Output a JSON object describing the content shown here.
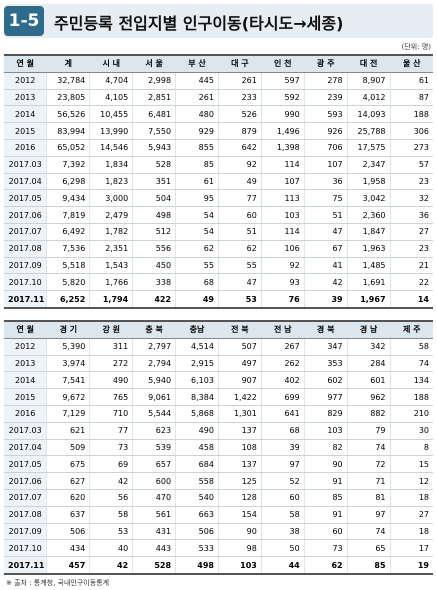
{
  "header": {
    "badge": "1-5",
    "title": "주민등록 전입지별 인구이동(타시도→세종)",
    "unit": "(단위: 명)"
  },
  "table1": {
    "columns": [
      "연 월",
      "계",
      "시 내",
      "서 울",
      "부 산",
      "대 구",
      "인 천",
      "광 주",
      "대 전",
      "울 산"
    ],
    "rows": [
      [
        "2012",
        "32,784",
        "4,704",
        "2,998",
        "445",
        "261",
        "597",
        "278",
        "8,907",
        "61"
      ],
      [
        "2013",
        "23,805",
        "4,105",
        "2,851",
        "261",
        "233",
        "592",
        "239",
        "4,012",
        "87"
      ],
      [
        "2014",
        "56,526",
        "10,455",
        "6,481",
        "480",
        "526",
        "990",
        "593",
        "14,093",
        "188"
      ],
      [
        "2015",
        "83,994",
        "13,990",
        "7,550",
        "929",
        "879",
        "1,496",
        "926",
        "25,788",
        "306"
      ],
      [
        "2016",
        "65,052",
        "14,546",
        "5,943",
        "855",
        "642",
        "1,398",
        "706",
        "17,575",
        "273"
      ],
      [
        "2017.03",
        "7,392",
        "1,834",
        "528",
        "85",
        "92",
        "114",
        "107",
        "2,347",
        "57"
      ],
      [
        "2017.04",
        "6,298",
        "1,823",
        "351",
        "61",
        "49",
        "107",
        "36",
        "1,958",
        "23"
      ],
      [
        "2017.05",
        "9,434",
        "3,000",
        "504",
        "95",
        "77",
        "113",
        "75",
        "3,042",
        "32"
      ],
      [
        "2017.06",
        "7,819",
        "2,479",
        "498",
        "54",
        "60",
        "103",
        "51",
        "2,360",
        "36"
      ],
      [
        "2017.07",
        "6,492",
        "1,782",
        "512",
        "54",
        "51",
        "114",
        "47",
        "1,847",
        "27"
      ],
      [
        "2017.08",
        "7,536",
        "2,351",
        "556",
        "62",
        "62",
        "106",
        "67",
        "1,963",
        "23"
      ],
      [
        "2017.09",
        "5,518",
        "1,543",
        "450",
        "55",
        "55",
        "92",
        "41",
        "1,485",
        "21"
      ],
      [
        "2017.10",
        "5,820",
        "1,766",
        "338",
        "68",
        "47",
        "93",
        "42",
        "1,691",
        "22"
      ],
      [
        "2017.11",
        "6,252",
        "1,794",
        "422",
        "49",
        "53",
        "76",
        "39",
        "1,967",
        "14"
      ]
    ]
  },
  "table2": {
    "columns": [
      "연 월",
      "경 기",
      "강 원",
      "충 북",
      "충남",
      "전 북",
      "전 남",
      "경 북",
      "경 남",
      "제 주"
    ],
    "rows": [
      [
        "2012",
        "5,390",
        "311",
        "2,797",
        "4,514",
        "507",
        "267",
        "347",
        "342",
        "58"
      ],
      [
        "2013",
        "3,974",
        "272",
        "2,794",
        "2,915",
        "497",
        "262",
        "353",
        "284",
        "74"
      ],
      [
        "2014",
        "7,541",
        "490",
        "5,940",
        "6,103",
        "907",
        "402",
        "602",
        "601",
        "134"
      ],
      [
        "2015",
        "9,672",
        "765",
        "9,061",
        "8,384",
        "1,422",
        "699",
        "977",
        "962",
        "188"
      ],
      [
        "2016",
        "7,129",
        "710",
        "5,544",
        "5,868",
        "1,301",
        "641",
        "829",
        "882",
        "210"
      ],
      [
        "2017.03",
        "621",
        "77",
        "623",
        "490",
        "137",
        "68",
        "103",
        "79",
        "30"
      ],
      [
        "2017.04",
        "509",
        "73",
        "539",
        "458",
        "108",
        "39",
        "82",
        "74",
        "8"
      ],
      [
        "2017.05",
        "675",
        "69",
        "657",
        "684",
        "137",
        "97",
        "90",
        "72",
        "15"
      ],
      [
        "2017.06",
        "627",
        "42",
        "600",
        "558",
        "125",
        "52",
        "91",
        "71",
        "12"
      ],
      [
        "2017.07",
        "620",
        "56",
        "470",
        "540",
        "128",
        "60",
        "85",
        "81",
        "18"
      ],
      [
        "2017.08",
        "637",
        "58",
        "561",
        "663",
        "154",
        "58",
        "91",
        "97",
        "27"
      ],
      [
        "2017.09",
        "506",
        "53",
        "431",
        "506",
        "90",
        "38",
        "60",
        "74",
        "18"
      ],
      [
        "2017.10",
        "434",
        "40",
        "443",
        "533",
        "98",
        "50",
        "73",
        "65",
        "17"
      ],
      [
        "2017.11",
        "457",
        "42",
        "528",
        "498",
        "103",
        "44",
        "62",
        "85",
        "19"
      ]
    ]
  },
  "source": "※ 출처 : 통계청, 국내인구이동통계"
}
